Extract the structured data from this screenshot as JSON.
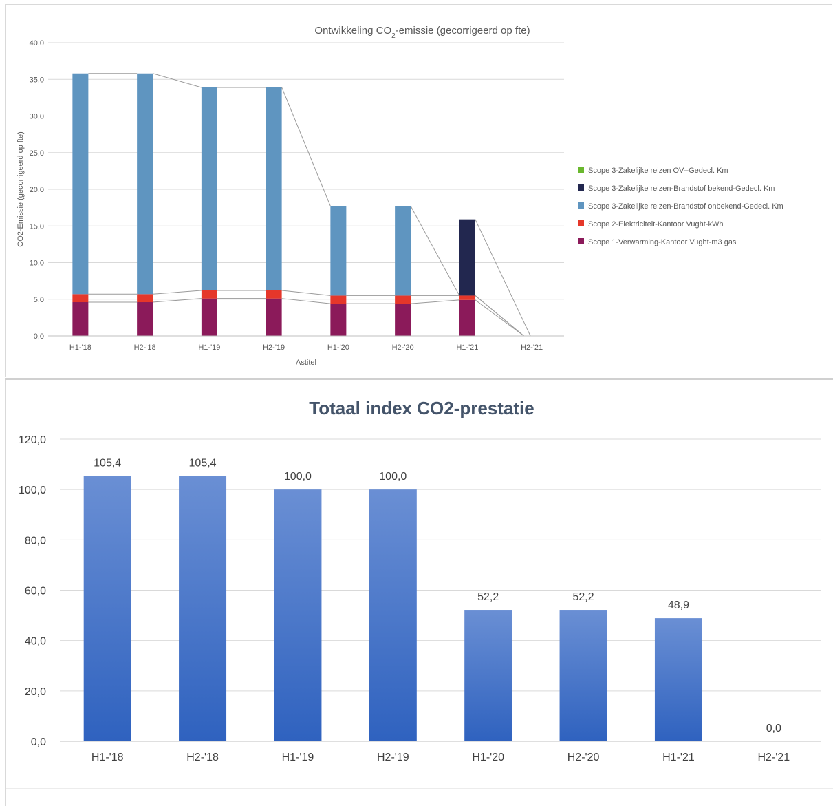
{
  "chart_data": [
    {
      "type": "bar",
      "stacked": true,
      "title_main": "Ontwikkeling CO",
      "title_sub": "2",
      "title_rest": "-emissie (gecorrigeerd op fte)",
      "xlabel": "Astitel",
      "ylabel": "CO2-Emissie (gecorrigeerd op fte)",
      "ylim": [
        0,
        40
      ],
      "yticks": [
        "0,0",
        "5,0",
        "10,0",
        "15,0",
        "20,0",
        "25,0",
        "30,0",
        "35,0",
        "40,0"
      ],
      "categories": [
        "H1-'18",
        "H2-'18",
        "H1-'19",
        "H2-'19",
        "H1-'20",
        "H2-'20",
        "H1-'21",
        "H2-'21"
      ],
      "series": [
        {
          "name": "Scope 1-Verwarming-Kantoor Vught-m3 gas",
          "color": "#8b1a5a",
          "values": [
            4.6,
            4.6,
            5.1,
            5.1,
            4.4,
            4.4,
            4.9,
            0
          ]
        },
        {
          "name": "Scope 2-Elektriciteit-Kantoor Vught-kWh",
          "color": "#e5372a",
          "values": [
            1.1,
            1.1,
            1.1,
            1.1,
            1.1,
            1.1,
            0.6,
            0
          ]
        },
        {
          "name": "Scope 3-Zakelijke reizen-Brandstof onbekend-Gedecl. Km",
          "color": "#5f95c0",
          "values": [
            30.1,
            30.1,
            27.7,
            27.7,
            12.2,
            12.2,
            0,
            0
          ]
        },
        {
          "name": "Scope 3-Zakelijke reizen-Brandstof bekend-Gedecl. Km",
          "color": "#22274f",
          "values": [
            0,
            0,
            0,
            0,
            0,
            0,
            10.4,
            0
          ]
        },
        {
          "name": "Scope 3-Zakelijke reizen OV--Gedecl. Km",
          "color": "#6ab82e",
          "values": [
            0,
            0,
            0,
            0,
            0,
            0,
            0,
            0
          ]
        }
      ],
      "legend_order": [
        4,
        3,
        2,
        1,
        0
      ],
      "legend_position": "right",
      "grid": true,
      "series_lines": true
    },
    {
      "type": "bar",
      "title": "Totaal index CO2-prestatie",
      "ylim": [
        0,
        120
      ],
      "yticks": [
        "0,0",
        "20,0",
        "40,0",
        "60,0",
        "80,0",
        "100,0",
        "120,0"
      ],
      "categories": [
        "H1-'18",
        "H2-'18",
        "H1-'19",
        "H2-'19",
        "H1-'20",
        "H2-'20",
        "H1-'21",
        "H2-'21"
      ],
      "values": [
        105.4,
        105.4,
        100.0,
        100.0,
        52.2,
        52.2,
        48.9,
        0.0
      ],
      "data_labels": [
        "105,4",
        "105,4",
        "100,0",
        "100,0",
        "52,2",
        "52,2",
        "48,9",
        "0,0"
      ],
      "color_top": "#6a8fd4",
      "color_bottom": "#2f62bf",
      "grid": true
    }
  ]
}
